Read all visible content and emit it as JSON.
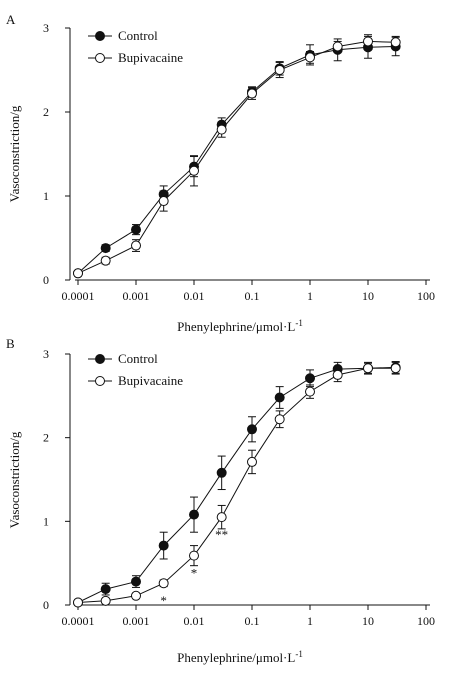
{
  "chart_data": [
    {
      "type": "line",
      "panel": "A",
      "xlabel": "Phenylephrine/μmol·L",
      "xlabel_sup": "-1",
      "ylabel": "Vasoconstriction/g",
      "x_scale": "log",
      "xlim": [
        0.0001,
        100
      ],
      "ylim": [
        0,
        3
      ],
      "xticks": [
        {
          "value": 0.0001,
          "label": "0.0001"
        },
        {
          "value": 0.001,
          "label": "0.001"
        },
        {
          "value": 0.01,
          "label": "0.01"
        },
        {
          "value": 0.1,
          "label": "0.1"
        },
        {
          "value": 1,
          "label": "1"
        },
        {
          "value": 10,
          "label": "10"
        },
        {
          "value": 100,
          "label": "100"
        }
      ],
      "yticks": [
        {
          "value": 0,
          "label": "0"
        },
        {
          "value": 1,
          "label": "1"
        },
        {
          "value": 2,
          "label": "2"
        },
        {
          "value": 3,
          "label": "3"
        }
      ],
      "legend_position": "top-left",
      "x": [
        0.0001,
        0.0003,
        0.001,
        0.003,
        0.01,
        0.03,
        0.1,
        0.3,
        1,
        3,
        10,
        30
      ],
      "series": [
        {
          "name": "Control",
          "marker": "filled",
          "values": [
            0.08,
            0.38,
            0.6,
            1.02,
            1.35,
            1.85,
            2.24,
            2.52,
            2.68,
            2.74,
            2.77,
            2.78
          ],
          "err": [
            0.02,
            0.04,
            0.06,
            0.1,
            0.12,
            0.08,
            0.06,
            0.08,
            0.12,
            0.13,
            0.13,
            0.11
          ]
        },
        {
          "name": "Bupivacaine",
          "marker": "open",
          "values": [
            0.08,
            0.23,
            0.41,
            0.94,
            1.3,
            1.79,
            2.22,
            2.5,
            2.65,
            2.78,
            2.84,
            2.83
          ],
          "err": [
            0.02,
            0.04,
            0.07,
            0.12,
            0.18,
            0.09,
            0.07,
            0.09,
            0.07,
            0.06,
            0.08,
            0.07
          ]
        }
      ],
      "annotations": []
    },
    {
      "type": "line",
      "panel": "B",
      "xlabel": "Phenylephrine/μmol·L",
      "xlabel_sup": "-1",
      "ylabel": "Vasoconstriction/g",
      "x_scale": "log",
      "xlim": [
        0.0001,
        100
      ],
      "ylim": [
        0,
        3
      ],
      "xticks": [
        {
          "value": 0.0001,
          "label": "0.0001"
        },
        {
          "value": 0.001,
          "label": "0.001"
        },
        {
          "value": 0.01,
          "label": "0.01"
        },
        {
          "value": 0.1,
          "label": "0.1"
        },
        {
          "value": 1,
          "label": "1"
        },
        {
          "value": 10,
          "label": "10"
        },
        {
          "value": 100,
          "label": "100"
        }
      ],
      "yticks": [
        {
          "value": 0,
          "label": "0"
        },
        {
          "value": 1,
          "label": "1"
        },
        {
          "value": 2,
          "label": "2"
        },
        {
          "value": 3,
          "label": "3"
        }
      ],
      "legend_position": "top-left",
      "x": [
        0.0001,
        0.0003,
        0.001,
        0.003,
        0.01,
        0.03,
        0.1,
        0.3,
        1,
        3,
        10,
        30
      ],
      "series": [
        {
          "name": "Control",
          "marker": "filled",
          "values": [
            0.03,
            0.19,
            0.28,
            0.71,
            1.08,
            1.58,
            2.1,
            2.48,
            2.71,
            2.82,
            2.83,
            2.84
          ],
          "err": [
            0.02,
            0.07,
            0.07,
            0.16,
            0.21,
            0.2,
            0.15,
            0.13,
            0.1,
            0.08,
            0.07,
            0.07
          ]
        },
        {
          "name": "Bupivacaine",
          "marker": "open",
          "values": [
            0.03,
            0.05,
            0.11,
            0.26,
            0.59,
            1.05,
            1.71,
            2.22,
            2.55,
            2.75,
            2.83,
            2.83
          ],
          "err": [
            0.02,
            0.02,
            0.03,
            0.04,
            0.12,
            0.14,
            0.14,
            0.1,
            0.08,
            0.08,
            0.06,
            0.07
          ]
        }
      ],
      "annotations": [
        {
          "x": 0.003,
          "y": 0.26,
          "text": "*"
        },
        {
          "x": 0.01,
          "y": 0.59,
          "text": "*"
        },
        {
          "x": 0.03,
          "y": 1.05,
          "text": "**"
        }
      ]
    }
  ],
  "panel_labels": [
    "A",
    "B"
  ]
}
